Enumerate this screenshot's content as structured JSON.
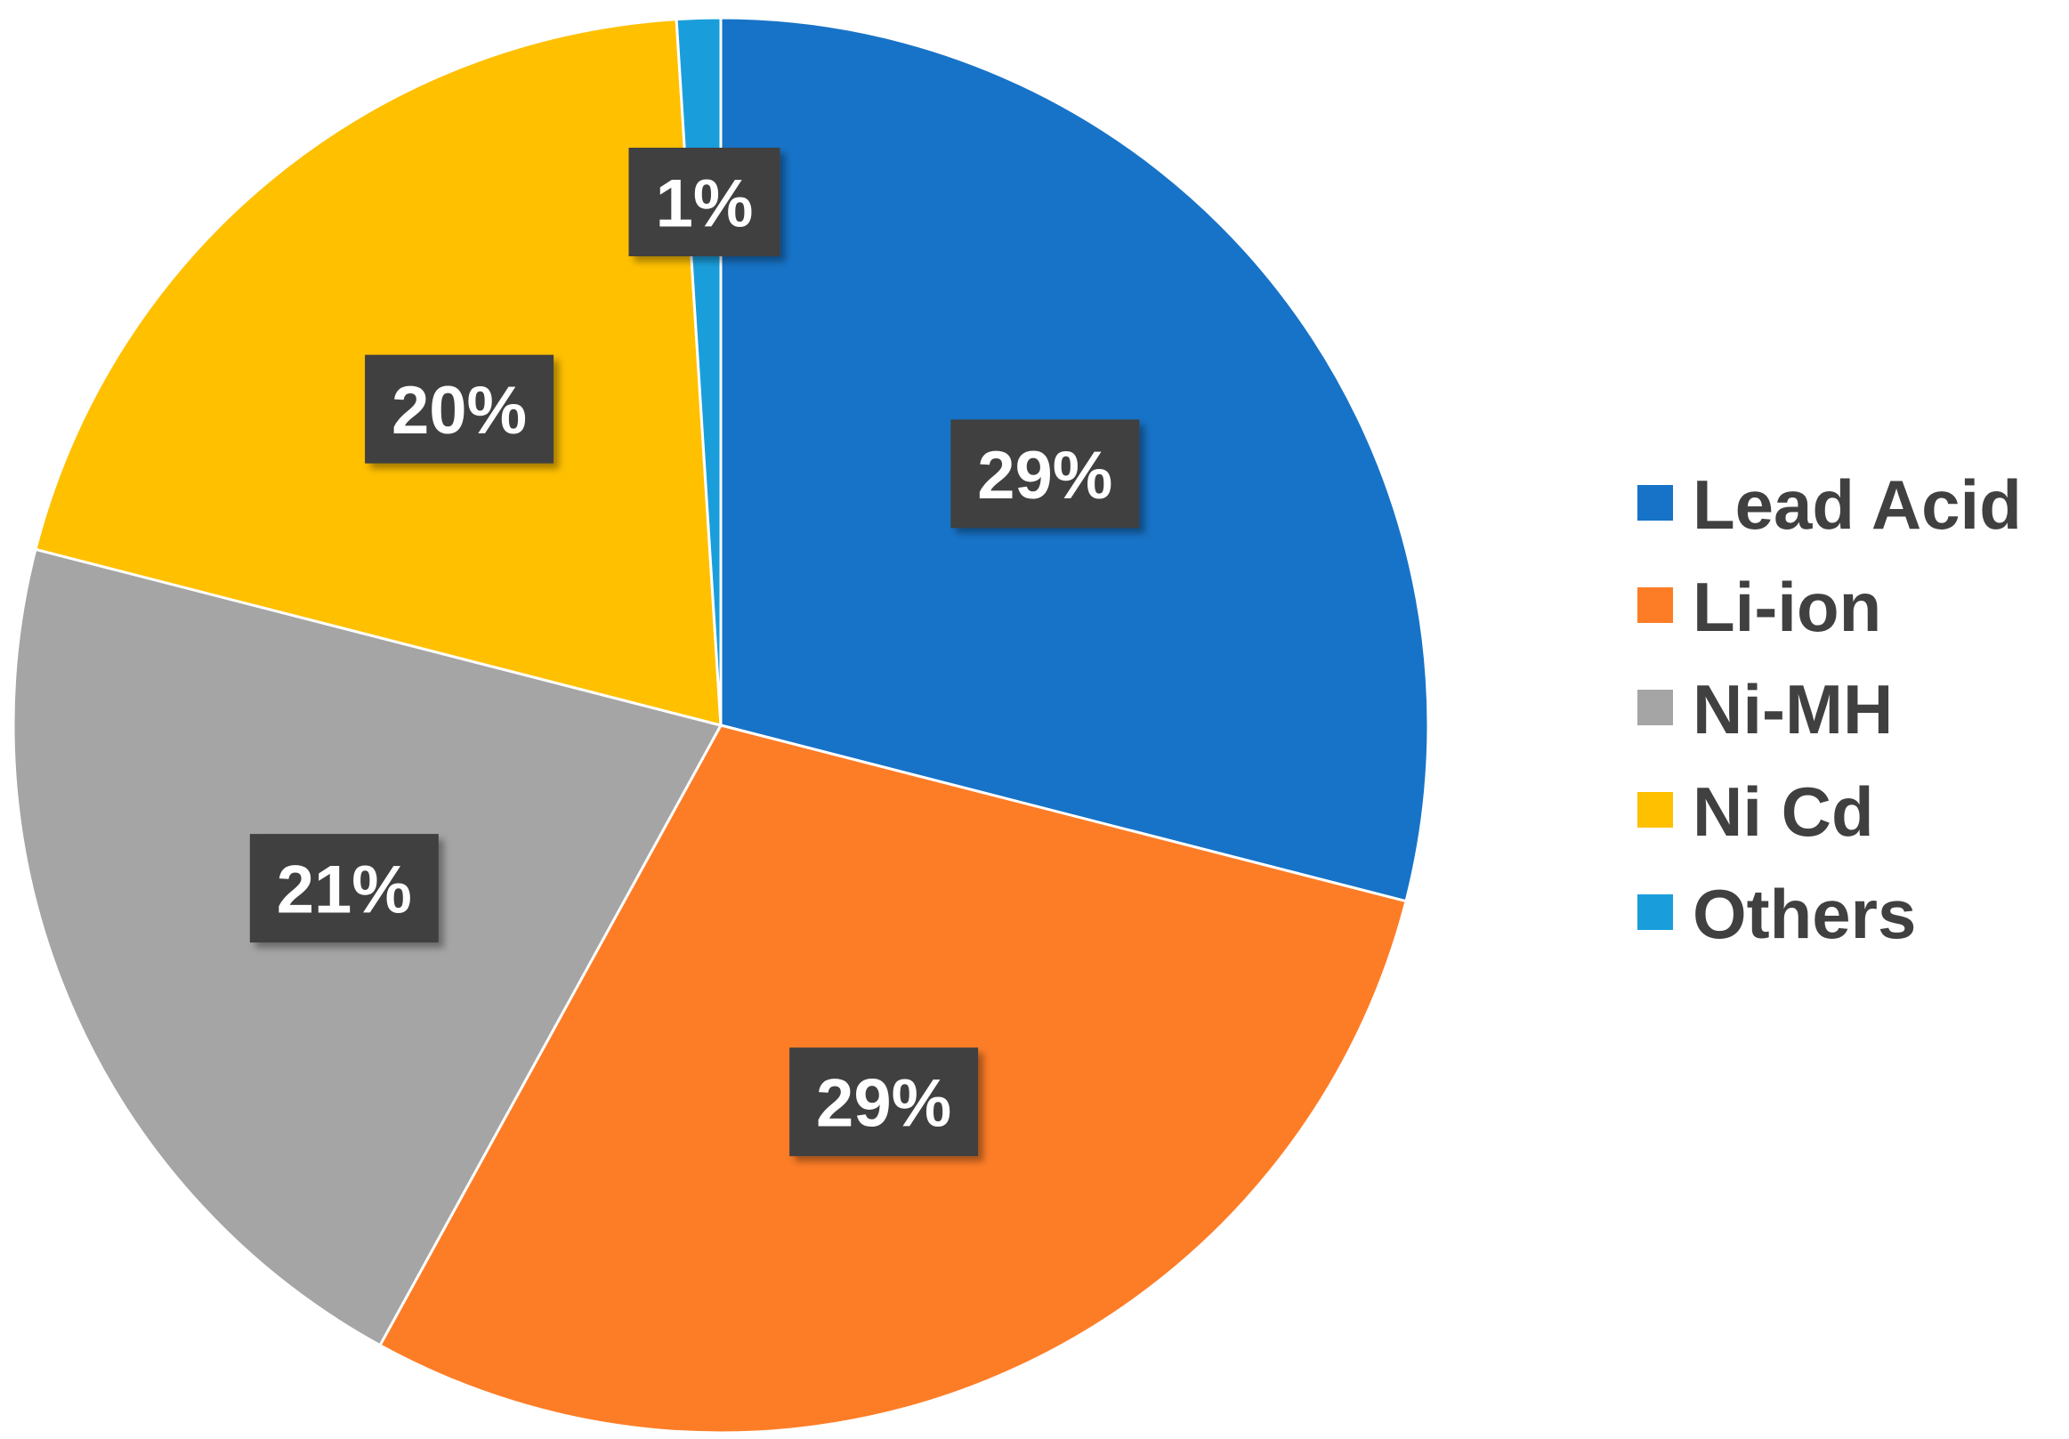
{
  "chart_data": {
    "type": "pie",
    "title": "",
    "start_angle_deg": 0,
    "direction": "clockwise",
    "data_labels_shown": true,
    "legend_position": "right",
    "slices": [
      {
        "name": "Lead Acid",
        "value": 29,
        "label": "29%",
        "color": "#1773C7"
      },
      {
        "name": "Li-ion",
        "value": 29,
        "label": "29%",
        "color": "#FD7D27"
      },
      {
        "name": "Ni-MH",
        "value": 21,
        "label": "21%",
        "color": "#A5A5A5"
      },
      {
        "name": "Ni Cd",
        "value": 20,
        "label": "20%",
        "color": "#FFC000"
      },
      {
        "name": "Others",
        "value": 1,
        "label": "1%",
        "color": "#1A9EDB"
      }
    ]
  }
}
